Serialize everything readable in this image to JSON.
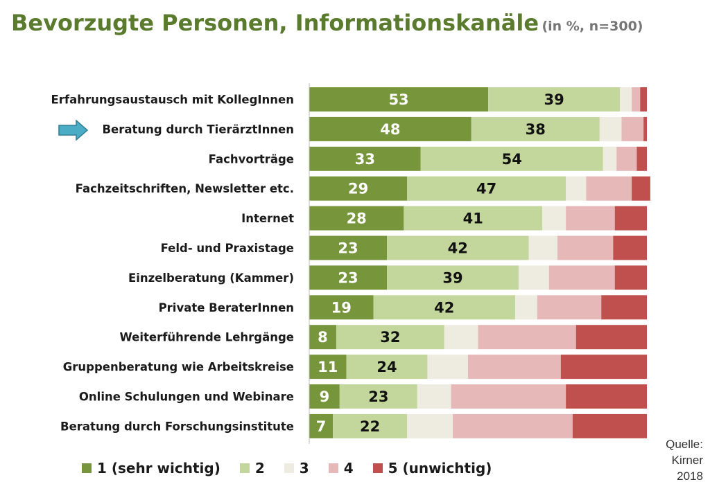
{
  "title": "Bevorzugte Personen, Informationskanäle",
  "subtitle": "(in %, n=300)",
  "source_lines": [
    "Quelle:",
    "Kirner",
    "2018"
  ],
  "colors": [
    "#77963b",
    "#c3d69b",
    "#eeece1",
    "#e6b9b8",
    "#c0504d"
  ],
  "label_colors": [
    "#ffffff",
    "#111111"
  ],
  "chart_data": {
    "type": "bar",
    "orientation": "horizontal",
    "stacked": true,
    "normalized": true,
    "title": "Bevorzugte Personen, Informationskanäle",
    "subtitle": "(in %, n=300)",
    "xlim": [
      0,
      100
    ],
    "legend_position": "bottom",
    "categories": [
      "Erfahrungsaustausch mit KollegInnen",
      "Beratung durch TierärztInnen",
      "Fachvorträge",
      "Fachzeitschriften, Newsletter etc.",
      "Internet",
      "Feld- und Praxistage",
      "Einzelberatung (Kammer)",
      "Private BeraterInnen",
      "Weiterführende Lehrgänge",
      "Gruppenberatung wie Arbeitskreise",
      "Online Schulungen und Webinare",
      "Beratung durch Forschungsinstitute"
    ],
    "series": [
      {
        "name": "1 (sehr wichtig)",
        "values": [
          53,
          48,
          33,
          29,
          28,
          23,
          23,
          19,
          8,
          11,
          9,
          7
        ]
      },
      {
        "name": "2",
        "values": [
          39,
          38,
          54,
          47,
          41,
          42,
          39,
          42,
          32,
          24,
          23,
          22
        ]
      },
      {
        "name": "3",
        "values": [
          3.5,
          6.5,
          4,
          6,
          7,
          8.5,
          9,
          6.5,
          10,
          12,
          10,
          13.5
        ]
      },
      {
        "name": "4",
        "values": [
          2.5,
          6.5,
          6,
          13.5,
          14.5,
          16.5,
          19.5,
          19,
          29,
          27.5,
          34,
          35.5
        ]
      },
      {
        "name": "5 (unwichtig)",
        "values": [
          2,
          1,
          3,
          5.5,
          9.5,
          10,
          9.5,
          13.5,
          21,
          25.5,
          24,
          22
        ]
      }
    ],
    "data_labels_series": [
      0,
      1
    ],
    "highlighted_category": "Beratung durch TierärztInnen"
  }
}
